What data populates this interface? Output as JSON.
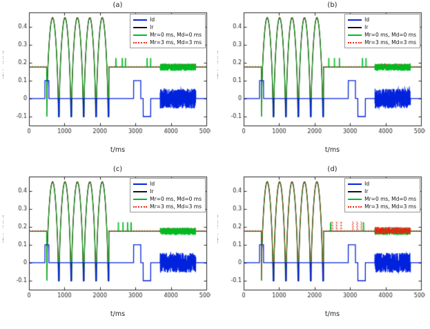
{
  "figure": {
    "background": "#ffffff",
    "axis_color": "#262626"
  },
  "chart_data": [
    {
      "type": "line",
      "title": "(a)",
      "xlabel": "t/ms",
      "ylabel": "y=(PY+IN)/2",
      "xlim": [
        0,
        5000
      ],
      "ylim": [
        -0.15,
        0.48
      ],
      "xticks": [
        0,
        1000,
        2000,
        3000,
        4000,
        5000
      ],
      "yticks": [
        -0.1,
        0,
        0.1,
        0.2,
        0.3,
        0.4
      ],
      "legend": {
        "position": "top-right",
        "entries": [
          {
            "label": "Id",
            "color": "#0022dd",
            "style": "solid",
            "width": 2
          },
          {
            "label": "Ir",
            "color": "#101010",
            "style": "solid",
            "width": 2
          },
          {
            "label": "Mr=0 ms, Md=0 ms",
            "color": "#00bb22",
            "style": "solid",
            "width": 2
          },
          {
            "label": "Mr=3 ms, Md=3 ms",
            "color": "#ee2211",
            "style": "dotted",
            "width": 2
          }
        ]
      },
      "signals": {
        "baseline": 0.175,
        "hump_region": {
          "start": 500,
          "end": 2250,
          "count": 5,
          "peak": 0.45,
          "notch": -0.1
        },
        "id_pulse1": {
          "start": 450,
          "end": 560,
          "level": 0.1
        },
        "id_pulse2": {
          "start": 2950,
          "end": 3150,
          "level": 0.1
        },
        "id_pulse3": {
          "start": 3220,
          "end": 3430,
          "level": -0.1
        },
        "noise": {
          "start": 3700,
          "end": 4700
        },
        "id_noise_amp": 0.055,
        "green_noise_amp": 0.02,
        "red_noise_amp": 0.015,
        "spike_height": 0.05,
        "green_spikes": [
          2450,
          2630,
          2720,
          3330,
          3430
        ],
        "red_spikes": [],
        "red_on_top": false
      }
    },
    {
      "type": "line",
      "title": "(b)",
      "xlabel": "t/ms",
      "ylabel": "y=(PY+IN)/2",
      "xlim": [
        0,
        5000
      ],
      "ylim": [
        -0.15,
        0.48
      ],
      "xticks": [
        0,
        1000,
        2000,
        3000,
        4000,
        5000
      ],
      "yticks": [
        -0.1,
        0,
        0.1,
        0.2,
        0.3,
        0.4
      ],
      "legend": {
        "position": "top-right",
        "entries": [
          {
            "label": "Id",
            "color": "#0022dd",
            "style": "solid",
            "width": 2
          },
          {
            "label": "Ir",
            "color": "#101010",
            "style": "solid",
            "width": 2
          },
          {
            "label": "Mr=0 ms, Md=0 ms",
            "color": "#00bb22",
            "style": "solid",
            "width": 2
          },
          {
            "label": "Mr=3 ms, Md=3 ms",
            "color": "#ee2211",
            "style": "dotted",
            "width": 2
          }
        ]
      },
      "signals": {
        "baseline": 0.175,
        "hump_region": {
          "start": 500,
          "end": 2250,
          "count": 5,
          "peak": 0.45,
          "notch": -0.1
        },
        "id_pulse1": {
          "start": 450,
          "end": 560,
          "level": 0.1
        },
        "id_pulse2": {
          "start": 2950,
          "end": 3150,
          "level": 0.1
        },
        "id_pulse3": {
          "start": 3220,
          "end": 3430,
          "level": -0.1
        },
        "noise": {
          "start": 3700,
          "end": 4700
        },
        "id_noise_amp": 0.055,
        "green_noise_amp": 0.02,
        "red_noise_amp": 0.015,
        "spike_height": 0.05,
        "green_spikes": [
          2400,
          2560,
          2700,
          3350,
          3450
        ],
        "red_spikes": [],
        "red_on_top": false
      }
    },
    {
      "type": "line",
      "title": "(c)",
      "xlabel": "t/ms",
      "ylabel": "y=(PY+IN)/2",
      "xlim": [
        0,
        5000
      ],
      "ylim": [
        -0.15,
        0.48
      ],
      "xticks": [
        0,
        1000,
        2000,
        3000,
        4000,
        5000
      ],
      "yticks": [
        -0.1,
        0,
        0.1,
        0.2,
        0.3,
        0.4
      ],
      "legend": {
        "position": "top-right",
        "entries": [
          {
            "label": "Id",
            "color": "#0022dd",
            "style": "solid",
            "width": 2
          },
          {
            "label": "Ir",
            "color": "#101010",
            "style": "solid",
            "width": 2
          },
          {
            "label": "Mr=0 ms, Md=0 ms",
            "color": "#00bb22",
            "style": "solid",
            "width": 2
          },
          {
            "label": "Mr=3 ms, Md=3 ms",
            "color": "#ee2211",
            "style": "dotted",
            "width": 2
          }
        ]
      },
      "signals": {
        "baseline": 0.175,
        "hump_region": {
          "start": 500,
          "end": 2250,
          "count": 5,
          "peak": 0.45,
          "notch": -0.1
        },
        "id_pulse1": {
          "start": 450,
          "end": 560,
          "level": 0.1
        },
        "id_pulse2": {
          "start": 2950,
          "end": 3150,
          "level": 0.1
        },
        "id_pulse3": {
          "start": 3220,
          "end": 3430,
          "level": -0.1
        },
        "noise": {
          "start": 3700,
          "end": 4700
        },
        "id_noise_amp": 0.055,
        "green_noise_amp": 0.02,
        "red_noise_amp": 0.015,
        "spike_height": 0.05,
        "green_spikes": [
          2520,
          2650,
          2780,
          2880
        ],
        "red_spikes": [],
        "red_on_top": false
      }
    },
    {
      "type": "line",
      "title": "(d)",
      "xlabel": "t/ms",
      "ylabel": "y=(PY+IN)/2",
      "xlim": [
        0,
        5000
      ],
      "ylim": [
        -0.15,
        0.48
      ],
      "xticks": [
        0,
        1000,
        2000,
        3000,
        4000,
        5000
      ],
      "yticks": [
        -0.1,
        0,
        0.1,
        0.2,
        0.3,
        0.4
      ],
      "legend": {
        "position": "top-right",
        "entries": [
          {
            "label": "Id",
            "color": "#0022dd",
            "style": "solid",
            "width": 2
          },
          {
            "label": "Ir",
            "color": "#101010",
            "style": "solid",
            "width": 2
          },
          {
            "label": "Mr=0 ms, Md=0 ms",
            "color": "#00bb22",
            "style": "solid",
            "width": 2
          },
          {
            "label": "Mr=3 ms, Md=3 ms",
            "color": "#ee2211",
            "style": "dotted",
            "width": 2
          }
        ]
      },
      "signals": {
        "baseline": 0.175,
        "hump_region": {
          "start": 500,
          "end": 2250,
          "count": 5,
          "peak": 0.45,
          "notch": -0.1
        },
        "id_pulse1": {
          "start": 450,
          "end": 560,
          "level": 0.1
        },
        "id_pulse2": {
          "start": 2950,
          "end": 3150,
          "level": 0.1
        },
        "id_pulse3": {
          "start": 3220,
          "end": 3430,
          "level": -0.1
        },
        "noise": {
          "start": 3700,
          "end": 4700
        },
        "id_noise_amp": 0.055,
        "green_noise_amp": 0.02,
        "red_noise_amp": 0.02,
        "spike_height": 0.05,
        "green_spikes": [
          2450,
          3380
        ],
        "red_spikes": [
          2500,
          2620,
          2750,
          3080,
          3200,
          3320
        ],
        "red_on_top": true
      }
    }
  ]
}
